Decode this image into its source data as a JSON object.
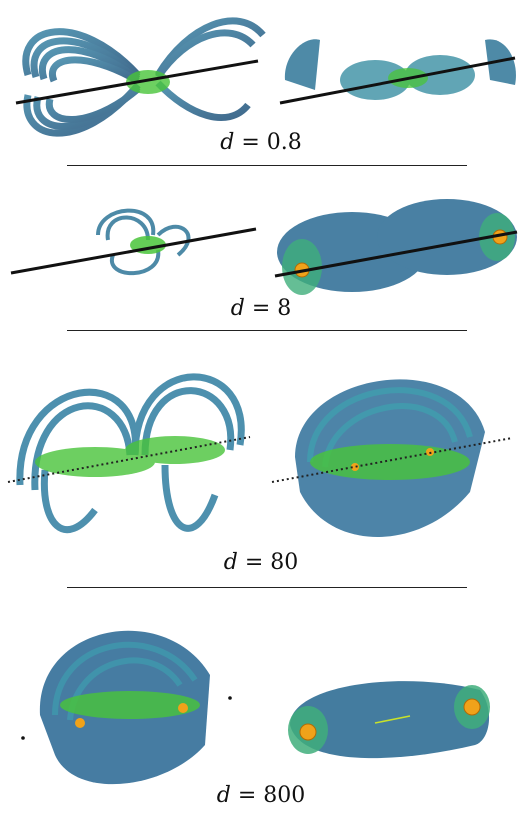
{
  "figure": {
    "rows": [
      {
        "label_var": "d",
        "label_eq": "= 0.8"
      },
      {
        "label_var": "d",
        "label_eq": "= 8"
      },
      {
        "label_var": "d",
        "label_eq": "= 80"
      },
      {
        "label_var": "d",
        "label_eq": "= 800"
      }
    ]
  },
  "colors": {
    "ring_blue": "#2f6f96",
    "ring_teal": "#3aa3a6",
    "ring_green": "#49c43a",
    "sphere_orange": "#f0a21a",
    "axis_black": "#111111"
  }
}
